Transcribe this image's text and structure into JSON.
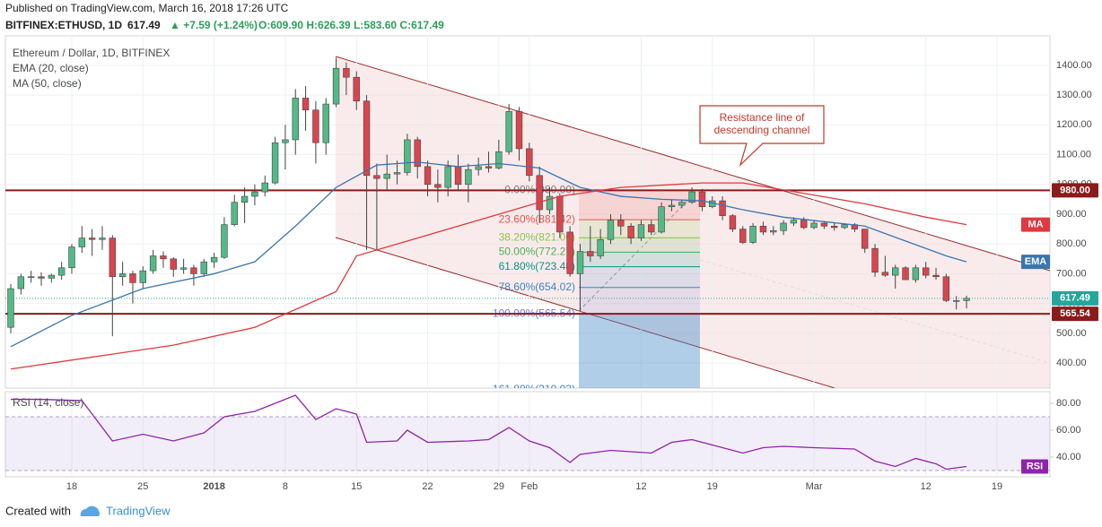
{
  "header": {
    "published": "Published on TradingView.com, March 16, 2018 17:26 UTC",
    "symbol": "BITFINEX:ETHUSD, 1D",
    "last": "617.49",
    "change": "▲ +7.59 (+1.24%)",
    "ohlc": "O:609.90 H:626.39 L:583.60 C:617.49"
  },
  "footer": {
    "created": "Created with",
    "brand": "TradingView"
  },
  "chart_data": [
    {
      "type": "candlestick",
      "title": "Ethereum / Dollar, 1D, BITFINEX",
      "ylim": [
        316,
        1499
      ],
      "yticks": [
        {
          "value": 400,
          "label": "400.00"
        },
        {
          "value": 500,
          "label": "500.00"
        },
        {
          "value": 600,
          "label": "600.00"
        },
        {
          "value": 700,
          "label": "700.00"
        },
        {
          "value": 800,
          "label": "800.00"
        },
        {
          "value": 900,
          "label": "900.00"
        },
        {
          "value": 1000,
          "label": "1000.00"
        },
        {
          "value": 1100,
          "label": "1100.00"
        },
        {
          "value": 1200,
          "label": "1200.00"
        },
        {
          "value": 1300,
          "label": "1300.00"
        },
        {
          "value": 1400,
          "label": "1400.00"
        }
      ],
      "xticks": [
        {
          "value": "2017-12-18",
          "label": "18"
        },
        {
          "value": "2017-12-25",
          "label": "25"
        },
        {
          "value": "2018-01-01",
          "label": "2018"
        },
        {
          "value": "2018-01-08",
          "label": "8"
        },
        {
          "value": "2018-01-15",
          "label": "15"
        },
        {
          "value": "2018-01-22",
          "label": "22"
        },
        {
          "value": "2018-01-29",
          "label": "29"
        },
        {
          "value": "2018-02-01",
          "label": "Feb"
        },
        {
          "value": "2018-02-12",
          "label": "12"
        },
        {
          "value": "2018-02-19",
          "label": "19"
        },
        {
          "value": "2018-03-01",
          "label": "Mar"
        },
        {
          "value": "2018-03-12",
          "label": "12"
        },
        {
          "value": "2018-03-19",
          "label": "19"
        }
      ],
      "grid": true,
      "candles": {
        "up_color": "#53b987",
        "down_color": "#d9454f",
        "x": [
          "2017-12-12",
          "2017-12-13",
          "2017-12-14",
          "2017-12-15",
          "2017-12-16",
          "2017-12-17",
          "2017-12-18",
          "2017-12-19",
          "2017-12-20",
          "2017-12-21",
          "2017-12-22",
          "2017-12-23",
          "2017-12-24",
          "2017-12-25",
          "2017-12-26",
          "2017-12-27",
          "2017-12-28",
          "2017-12-29",
          "2017-12-30",
          "2017-12-31",
          "2018-01-01",
          "2018-01-02",
          "2018-01-03",
          "2018-01-04",
          "2018-01-05",
          "2018-01-06",
          "2018-01-07",
          "2018-01-08",
          "2018-01-09",
          "2018-01-10",
          "2018-01-11",
          "2018-01-12",
          "2018-01-13",
          "2018-01-14",
          "2018-01-15",
          "2018-01-16",
          "2018-01-17",
          "2018-01-18",
          "2018-01-19",
          "2018-01-20",
          "2018-01-21",
          "2018-01-22",
          "2018-01-23",
          "2018-01-24",
          "2018-01-25",
          "2018-01-26",
          "2018-01-27",
          "2018-01-28",
          "2018-01-29",
          "2018-01-30",
          "2018-01-31",
          "2018-02-01",
          "2018-02-02",
          "2018-02-03",
          "2018-02-04",
          "2018-02-05",
          "2018-02-06",
          "2018-02-07",
          "2018-02-08",
          "2018-02-09",
          "2018-02-10",
          "2018-02-11",
          "2018-02-12",
          "2018-02-13",
          "2018-02-14",
          "2018-02-15",
          "2018-02-16",
          "2018-02-17",
          "2018-02-18",
          "2018-02-19",
          "2018-02-20",
          "2018-02-21",
          "2018-02-22",
          "2018-02-23",
          "2018-02-24",
          "2018-02-25",
          "2018-02-26",
          "2018-02-27",
          "2018-02-28",
          "2018-03-01",
          "2018-03-02",
          "2018-03-03",
          "2018-03-04",
          "2018-03-05",
          "2018-03-06",
          "2018-03-07",
          "2018-03-08",
          "2018-03-09",
          "2018-03-10",
          "2018-03-11",
          "2018-03-12",
          "2018-03-13",
          "2018-03-14",
          "2018-03-15",
          "2018-03-16"
        ],
        "ohlc": [
          [
            520,
            665,
            500,
            650
          ],
          [
            650,
            700,
            630,
            690
          ],
          [
            690,
            710,
            670,
            690
          ],
          [
            690,
            705,
            660,
            685
          ],
          [
            685,
            700,
            670,
            695
          ],
          [
            695,
            740,
            680,
            720
          ],
          [
            720,
            800,
            700,
            790
          ],
          [
            790,
            860,
            770,
            820
          ],
          [
            820,
            850,
            760,
            815
          ],
          [
            815,
            860,
            780,
            820
          ],
          [
            820,
            830,
            490,
            690
          ],
          [
            690,
            740,
            660,
            700
          ],
          [
            700,
            710,
            600,
            670
          ],
          [
            670,
            725,
            650,
            710
          ],
          [
            710,
            780,
            700,
            760
          ],
          [
            760,
            775,
            720,
            750
          ],
          [
            750,
            755,
            690,
            715
          ],
          [
            715,
            750,
            700,
            720
          ],
          [
            720,
            730,
            660,
            700
          ],
          [
            700,
            750,
            690,
            740
          ],
          [
            740,
            770,
            720,
            755
          ],
          [
            755,
            890,
            750,
            865
          ],
          [
            865,
            965,
            860,
            940
          ],
          [
            940,
            990,
            870,
            960
          ],
          [
            960,
            1000,
            930,
            975
          ],
          [
            975,
            1030,
            960,
            1005
          ],
          [
            1005,
            1160,
            1000,
            1140
          ],
          [
            1140,
            1200,
            1050,
            1150
          ],
          [
            1150,
            1320,
            1100,
            1290
          ],
          [
            1290,
            1330,
            1180,
            1250
          ],
          [
            1250,
            1280,
            1070,
            1140
          ],
          [
            1140,
            1290,
            1100,
            1270
          ],
          [
            1270,
            1425,
            1260,
            1390
          ],
          [
            1390,
            1410,
            1300,
            1360
          ],
          [
            1360,
            1380,
            1250,
            1280
          ],
          [
            1280,
            1300,
            780,
            1030
          ],
          [
            1030,
            1070,
            780,
            1020
          ],
          [
            1020,
            1100,
            980,
            1035
          ],
          [
            1035,
            1080,
            1000,
            1040
          ],
          [
            1040,
            1170,
            1030,
            1150
          ],
          [
            1150,
            1160,
            1020,
            1060
          ],
          [
            1060,
            1080,
            960,
            1000
          ],
          [
            1000,
            1050,
            940,
            990
          ],
          [
            990,
            1080,
            960,
            1060
          ],
          [
            1060,
            1100,
            980,
            1000
          ],
          [
            1000,
            1070,
            940,
            1050
          ],
          [
            1050,
            1090,
            1030,
            1060
          ],
          [
            1060,
            1110,
            1040,
            1055
          ],
          [
            1055,
            1150,
            1050,
            1110
          ],
          [
            1110,
            1270,
            1100,
            1245
          ],
          [
            1245,
            1260,
            1080,
            1120
          ],
          [
            1120,
            1140,
            1010,
            1030
          ],
          [
            1030,
            1060,
            870,
            915
          ],
          [
            915,
            990,
            900,
            960
          ],
          [
            960,
            970,
            820,
            840
          ],
          [
            840,
            860,
            690,
            700
          ],
          [
            700,
            800,
            575,
            775
          ],
          [
            775,
            860,
            740,
            760
          ],
          [
            760,
            850,
            750,
            815
          ],
          [
            815,
            900,
            800,
            880
          ],
          [
            880,
            900,
            830,
            860
          ],
          [
            860,
            870,
            800,
            820
          ],
          [
            820,
            880,
            810,
            865
          ],
          [
            865,
            880,
            830,
            840
          ],
          [
            840,
            940,
            835,
            925
          ],
          [
            925,
            950,
            910,
            930
          ],
          [
            930,
            950,
            920,
            940
          ],
          [
            940,
            990,
            935,
            975
          ],
          [
            975,
            985,
            910,
            925
          ],
          [
            925,
            960,
            920,
            945
          ],
          [
            945,
            960,
            880,
            895
          ],
          [
            895,
            900,
            840,
            850
          ],
          [
            850,
            860,
            800,
            805
          ],
          [
            805,
            870,
            800,
            860
          ],
          [
            860,
            875,
            830,
            840
          ],
          [
            840,
            860,
            830,
            845
          ],
          [
            845,
            880,
            830,
            870
          ],
          [
            870,
            890,
            860,
            880
          ],
          [
            880,
            890,
            850,
            855
          ],
          [
            855,
            880,
            850,
            870
          ],
          [
            870,
            875,
            850,
            860
          ],
          [
            860,
            870,
            845,
            855
          ],
          [
            855,
            870,
            850,
            865
          ],
          [
            865,
            870,
            840,
            850
          ],
          [
            850,
            850,
            770,
            785
          ],
          [
            785,
            800,
            690,
            705
          ],
          [
            705,
            760,
            690,
            695
          ],
          [
            695,
            730,
            650,
            720
          ],
          [
            720,
            725,
            680,
            680
          ],
          [
            680,
            730,
            670,
            720
          ],
          [
            720,
            740,
            685,
            695
          ],
          [
            695,
            720,
            680,
            690
          ],
          [
            690,
            700,
            605,
            610
          ],
          [
            610,
            625,
            580,
            610
          ],
          [
            609.9,
            626.39,
            583.6,
            617.49
          ]
        ]
      },
      "series": [
        {
          "name": "EMA",
          "label": "EMA (20, close)",
          "color": "#3b75af",
          "x": [
            "2017-12-12",
            "2017-12-18",
            "2017-12-25",
            "2018-01-01",
            "2018-01-05",
            "2018-01-09",
            "2018-01-13",
            "2018-01-17",
            "2018-01-21",
            "2018-01-25",
            "2018-01-29",
            "2018-02-02",
            "2018-02-06",
            "2018-02-10",
            "2018-02-14",
            "2018-02-18",
            "2018-02-22",
            "2018-02-26",
            "2018-03-02",
            "2018-03-06",
            "2018-03-10",
            "2018-03-14",
            "2018-03-16"
          ],
          "values": [
            455,
            560,
            650,
            700,
            740,
            860,
            990,
            1065,
            1075,
            1060,
            1070,
            1055,
            990,
            960,
            950,
            945,
            915,
            890,
            875,
            860,
            810,
            760,
            740
          ]
        },
        {
          "name": "MA",
          "label": "MA (50, close)",
          "color": "#e0393e",
          "x": [
            "2017-12-12",
            "2017-12-20",
            "2017-12-28",
            "2018-01-05",
            "2018-01-13",
            "2018-01-15",
            "2018-01-21",
            "2018-01-29",
            "2018-02-04",
            "2018-02-10",
            "2018-02-18",
            "2018-02-22",
            "2018-02-28",
            "2018-03-06",
            "2018-03-12",
            "2018-03-16"
          ],
          "values": [
            380,
            420,
            460,
            520,
            640,
            760,
            820,
            900,
            960,
            990,
            1005,
            1005,
            970,
            935,
            890,
            865
          ]
        }
      ],
      "fib": [
        {
          "value": 980,
          "label": "0.00%(980.00)",
          "color": "#787b86"
        },
        {
          "value": 881.42,
          "label": "23.60%(881.42)",
          "color": "#e5534b"
        },
        {
          "value": 821.06,
          "label": "38.20%(821.06)",
          "color": "#8bc34a"
        },
        {
          "value": 772.27,
          "label": "50.00%(772.27)",
          "color": "#4caf50"
        },
        {
          "value": 723.48,
          "label": "61.80%(723.48)",
          "color": "#009688"
        },
        {
          "value": 654.02,
          "label": "78.60%(654.02)",
          "color": "#3d85c6"
        },
        {
          "value": 565.54,
          "label": "100.00%(565.54)",
          "color": "#6c7bd9"
        },
        {
          "value": 310.03,
          "label": "161.80%(310.03)",
          "color": "#3d85c6"
        }
      ],
      "levels": [
        {
          "value": 980,
          "label": "980.00",
          "color": "#8b1a1a"
        },
        {
          "value": 565.54,
          "label": "565.54",
          "color": "#8b1a1a"
        }
      ],
      "last_price": {
        "value": 617.49,
        "label": "617.49",
        "color": "#26a69a"
      },
      "annotation": {
        "lines": [
          "Resistance line of",
          "descending channel"
        ]
      }
    },
    {
      "type": "line",
      "title": "RSI (14, close)",
      "name": "RSI",
      "color": "#8e24aa",
      "ylim": [
        25.3,
        88.7
      ],
      "yticks": [
        {
          "value": 40,
          "label": "40.00"
        },
        {
          "value": 60,
          "label": "60.00"
        },
        {
          "value": 80,
          "label": "80.00"
        }
      ],
      "band": [
        30,
        70
      ],
      "x": [
        "2017-12-12",
        "2017-12-15",
        "2017-12-19",
        "2017-12-22",
        "2017-12-25",
        "2017-12-28",
        "2017-12-31",
        "2018-01-02",
        "2018-01-05",
        "2018-01-07",
        "2018-01-09",
        "2018-01-11",
        "2018-01-13",
        "2018-01-15",
        "2018-01-16",
        "2018-01-19",
        "2018-01-20",
        "2018-01-22",
        "2018-01-26",
        "2018-01-28",
        "2018-01-30",
        "2018-02-01",
        "2018-02-03",
        "2018-02-05",
        "2018-02-06",
        "2018-02-09",
        "2018-02-13",
        "2018-02-15",
        "2018-02-17",
        "2018-02-19",
        "2018-02-22",
        "2018-02-24",
        "2018-02-26",
        "2018-03-01",
        "2018-03-05",
        "2018-03-07",
        "2018-03-09",
        "2018-03-11",
        "2018-03-13",
        "2018-03-14",
        "2018-03-16"
      ],
      "values": [
        83,
        83,
        82,
        52,
        57,
        52,
        58,
        70,
        74,
        80,
        86,
        68,
        76,
        72,
        51,
        52,
        60,
        51,
        52,
        53,
        62,
        52,
        47,
        36,
        42,
        45,
        43,
        51,
        53,
        49,
        43,
        47,
        48,
        47,
        46,
        37,
        33,
        39,
        35,
        31,
        33
      ]
    }
  ]
}
